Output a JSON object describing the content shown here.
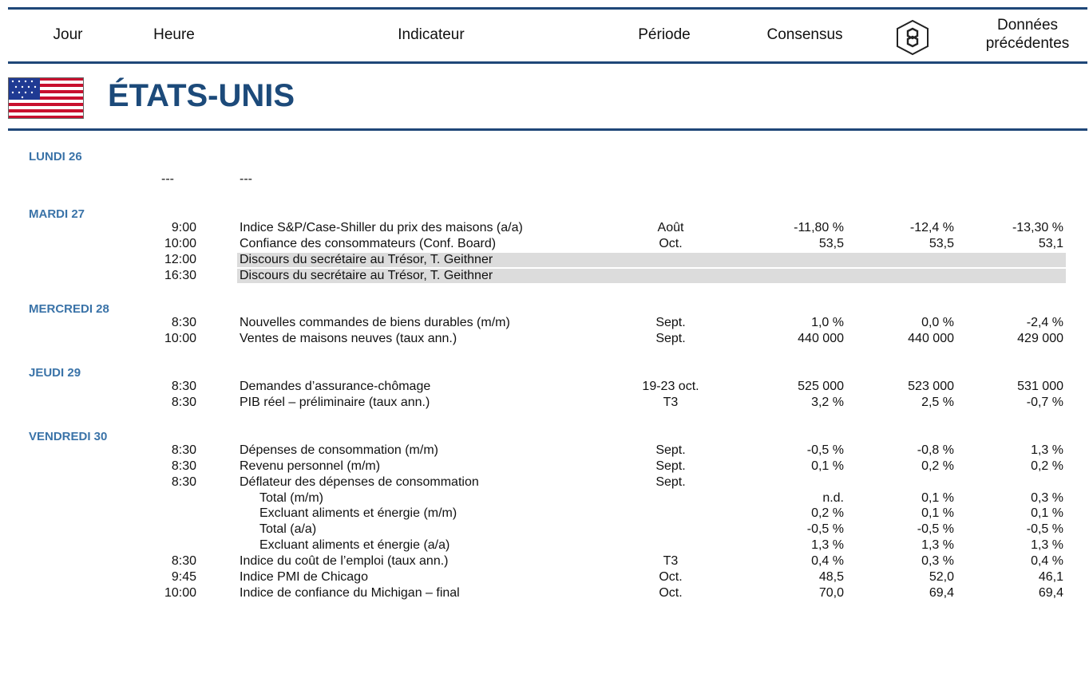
{
  "header": {
    "columns": [
      "Jour",
      "Heure",
      "Indicateur",
      "Période",
      "Consensus",
      "Données précédentes"
    ]
  },
  "country": "ÉTATS-UNIS",
  "days": [
    {
      "label": "LUNDI 26",
      "rows": [
        {
          "time": "---",
          "indicator": "---"
        }
      ]
    },
    {
      "label": "MARDI 27",
      "rows": [
        {
          "time": "9:00",
          "indicator": "Indice S&P/Case-Shiller du prix des maisons (a/a)",
          "period": "Août",
          "consensus": "-11,80 %",
          "forecast": "-12,4 %",
          "previous": "-13,30 %"
        },
        {
          "time": "10:00",
          "indicator": "Confiance des consommateurs (Conf. Board)",
          "period": "Oct.",
          "consensus": "53,5",
          "forecast": "53,5",
          "previous": "53,1"
        },
        {
          "time": "12:00",
          "indicator": "Discours du secrétaire au Trésor, T. Geithner",
          "highlight": true
        },
        {
          "time": "16:30",
          "indicator": "Discours du secrétaire au Trésor, T. Geithner",
          "highlight": true
        }
      ]
    },
    {
      "label": "MERCREDI 28",
      "rows": [
        {
          "time": "8:30",
          "indicator": "Nouvelles commandes de biens durables (m/m)",
          "period": "Sept.",
          "consensus": "1,0 %",
          "forecast": "0,0 %",
          "previous": "-2,4 %"
        },
        {
          "time": "10:00",
          "indicator": "Ventes de maisons neuves (taux ann.)",
          "period": "Sept.",
          "consensus": "440 000",
          "forecast": "440 000",
          "previous": "429 000"
        }
      ]
    },
    {
      "label": "JEUDI 29",
      "rows": [
        {
          "time": "8:30",
          "indicator": "Demandes d’assurance-chômage",
          "period": "19-23 oct.",
          "consensus": "525 000",
          "forecast": "523 000",
          "previous": "531 000"
        },
        {
          "time": "8:30",
          "indicator": "PIB réel – préliminaire (taux ann.)",
          "period": "T3",
          "consensus": "3,2 %",
          "forecast": "2,5 %",
          "previous": "-0,7 %"
        }
      ]
    },
    {
      "label": "VENDREDI 30",
      "rows": [
        {
          "time": "8:30",
          "indicator": "Dépenses de consommation (m/m)",
          "period": "Sept.",
          "consensus": "-0,5 %",
          "forecast": "-0,8 %",
          "previous": "1,3 %"
        },
        {
          "time": "8:30",
          "indicator": "Revenu personnel (m/m)",
          "period": "Sept.",
          "consensus": "0,1 %",
          "forecast": "0,2 %",
          "previous": "0,2 %"
        },
        {
          "time": "8:30",
          "indicator": "Déflateur des dépenses de consommation",
          "period": "Sept."
        },
        {
          "indicator": "Total (m/m)",
          "indent": true,
          "consensus": "n.d.",
          "forecast": "0,1 %",
          "previous": "0,3 %"
        },
        {
          "indicator": "Excluant aliments et énergie (m/m)",
          "indent": true,
          "consensus": "0,2 %",
          "forecast": "0,1 %",
          "previous": "0,1 %"
        },
        {
          "indicator": "Total (a/a)",
          "indent": true,
          "consensus": "-0,5 %",
          "forecast": "-0,5 %",
          "previous": "-0,5 %"
        },
        {
          "indicator": "Excluant aliments et énergie (a/a)",
          "indent": true,
          "consensus": "1,3 %",
          "forecast": "1,3 %",
          "previous": "1,3 %"
        },
        {
          "time": "8:30",
          "indicator": "Indice du coût de l’emploi (taux ann.)",
          "period": "T3",
          "consensus": "0,4 %",
          "forecast": "0,3 %",
          "previous": "0,4 %"
        },
        {
          "time": "9:45",
          "indicator": "Indice PMI de Chicago",
          "period": "Oct.",
          "consensus": "48,5",
          "forecast": "52,0",
          "previous": "46,1"
        },
        {
          "time": "10:00",
          "indicator": "Indice de confiance du Michigan – final",
          "period": "Oct.",
          "consensus": "70,0",
          "forecast": "69,4",
          "previous": "69,4"
        }
      ]
    }
  ]
}
